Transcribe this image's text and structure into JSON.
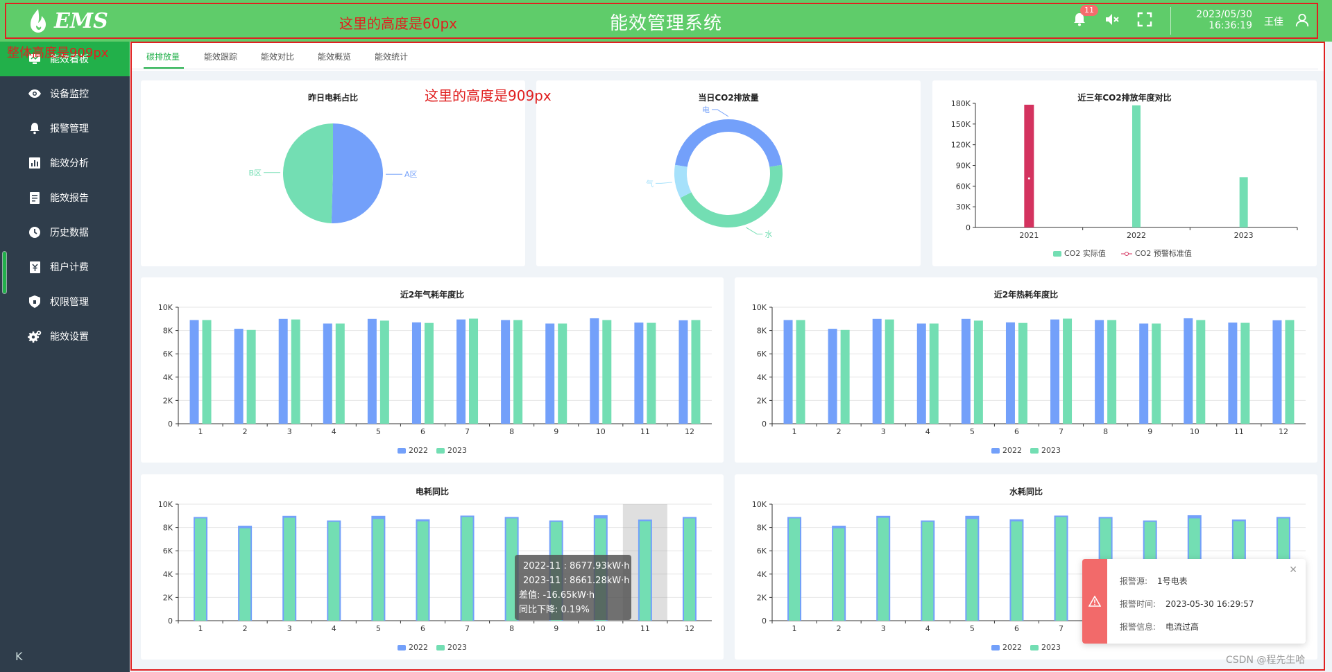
{
  "header": {
    "logo_text": "EMS",
    "title": "能效管理系统",
    "notification_count": "11",
    "date": "2023/05/30",
    "time": "16:36:19",
    "user": "王佳"
  },
  "annotations": {
    "header_height": "这里的高度是60px",
    "overall_height": "整体高度是909px",
    "content_height": "这里的高度是909px"
  },
  "sidebar": {
    "items": [
      {
        "label": "能效看板",
        "icon": "monitor-icon",
        "active": true
      },
      {
        "label": "设备监控",
        "icon": "eye-icon"
      },
      {
        "label": "报警管理",
        "icon": "bell-icon"
      },
      {
        "label": "能效分析",
        "icon": "bar-chart-icon"
      },
      {
        "label": "能效报告",
        "icon": "document-icon"
      },
      {
        "label": "历史数据",
        "icon": "clock-icon"
      },
      {
        "label": "租户计费",
        "icon": "bill-icon"
      },
      {
        "label": "权限管理",
        "icon": "shield-icon"
      },
      {
        "label": "能效设置",
        "icon": "gear-icon"
      }
    ],
    "collapse_icon": "K"
  },
  "tabs": [
    {
      "label": "碳排放量",
      "active": true
    },
    {
      "label": "能效跟踪"
    },
    {
      "label": "能效对比"
    },
    {
      "label": "能效概览"
    },
    {
      "label": "能效统计"
    }
  ],
  "colors": {
    "green": "#22b04a",
    "header": "#5fcc6a",
    "blue": "#73a0fa",
    "teal": "#73deb3",
    "red": "#d4335f",
    "sidebar": "#2f3d4b"
  },
  "chart_data": [
    {
      "id": "pie",
      "type": "pie",
      "title": "昨日电耗占比",
      "slices": [
        {
          "name": "A区",
          "value": 50.5
        },
        {
          "name": "B区",
          "value": 49.5
        }
      ]
    },
    {
      "id": "donut",
      "type": "pie",
      "title": "当日CO2排放量",
      "slices": [
        {
          "name": "电",
          "value": 45
        },
        {
          "name": "水",
          "value": 45
        },
        {
          "name": "气",
          "value": 10
        }
      ]
    },
    {
      "id": "co2",
      "type": "bar",
      "title": "近三年CO2排放年度对比",
      "categories": [
        "2021",
        "2022",
        "2023"
      ],
      "series": [
        {
          "name": "CO2  实际值",
          "values": [
            null,
            177000,
            73000
          ]
        },
        {
          "name": "CO2  预警标准值",
          "values": [
            178000,
            null,
            null
          ]
        }
      ],
      "yticks": [
        "0",
        "30K",
        "60K",
        "90K",
        "120K",
        "150K",
        "180K"
      ],
      "ylim": [
        0,
        180000
      ]
    },
    {
      "id": "gas",
      "type": "bar",
      "title": "近2年气耗年度比",
      "categories": [
        "1",
        "2",
        "3",
        "4",
        "5",
        "6",
        "7",
        "8",
        "9",
        "10",
        "11",
        "12"
      ],
      "series": [
        {
          "name": "2022",
          "values": [
            8900,
            8150,
            9000,
            8600,
            9000,
            8700,
            8950,
            8900,
            8600,
            9050,
            8680,
            8880
          ]
        },
        {
          "name": "2023",
          "values": [
            8900,
            8050,
            8950,
            8600,
            8850,
            8650,
            9020,
            8900,
            8600,
            8900,
            8660,
            8900
          ]
        }
      ],
      "yticks": [
        "0",
        "2K",
        "4K",
        "6K",
        "8K",
        "10K"
      ],
      "ylim": [
        0,
        10000
      ]
    },
    {
      "id": "heat",
      "type": "bar",
      "title": "近2年热耗年度比",
      "categories": [
        "1",
        "2",
        "3",
        "4",
        "5",
        "6",
        "7",
        "8",
        "9",
        "10",
        "11",
        "12"
      ],
      "series": [
        {
          "name": "2022",
          "values": [
            8900,
            8150,
            9000,
            8600,
            9000,
            8700,
            8950,
            8900,
            8600,
            9050,
            8680,
            8880
          ]
        },
        {
          "name": "2023",
          "values": [
            8900,
            8050,
            8950,
            8600,
            8850,
            8650,
            9020,
            8900,
            8600,
            8900,
            8660,
            8900
          ]
        }
      ],
      "yticks": [
        "0",
        "2K",
        "4K",
        "6K",
        "8K",
        "10K"
      ],
      "ylim": [
        0,
        10000
      ]
    },
    {
      "id": "elec",
      "type": "bar",
      "title": "电耗同比",
      "categories": [
        "1",
        "2",
        "3",
        "4",
        "5",
        "6",
        "7",
        "8",
        "9",
        "10",
        "11",
        "12"
      ],
      "series": [
        {
          "name": "2022",
          "values": [
            8900,
            8150,
            9000,
            8600,
            9000,
            8700,
            8950,
            8900,
            8600,
            9050,
            8677.93,
            8880
          ]
        },
        {
          "name": "2023",
          "values": [
            8900,
            8050,
            8950,
            8600,
            8850,
            8650,
            9020,
            8900,
            8600,
            8900,
            8661.28,
            8900
          ]
        }
      ],
      "highlight": "11",
      "yticks": [
        "0",
        "2K",
        "4K",
        "6K",
        "8K",
        "10K"
      ],
      "ylim": [
        0,
        10000
      ]
    },
    {
      "id": "water",
      "type": "bar",
      "title": "水耗同比",
      "categories": [
        "1",
        "2",
        "3",
        "4",
        "5",
        "6",
        "7",
        "8",
        "9",
        "10",
        "11",
        "12"
      ],
      "series": [
        {
          "name": "2022",
          "values": [
            8900,
            8150,
            9000,
            8600,
            9000,
            8700,
            8950,
            8900,
            8600,
            9050,
            8680,
            8880
          ]
        },
        {
          "name": "2023",
          "values": [
            8900,
            8050,
            8950,
            8600,
            8850,
            8650,
            9020,
            8900,
            8600,
            8900,
            8660,
            8900
          ]
        }
      ],
      "yticks": [
        "0",
        "2K",
        "4K",
        "6K",
        "8K",
        "10K"
      ],
      "ylim": [
        0,
        10000
      ]
    }
  ],
  "tooltip": {
    "line1": "2022-11 : 8677.93kW·h",
    "line2": "2023-11 : 8661.28kW·h",
    "line3": "差值: -16.65kW·h",
    "line4": "同比下降: 0.19%"
  },
  "alarm": {
    "source_label": "报警源:",
    "source": "1号电表",
    "time_label": "报警时间:",
    "time": "2023-05-30 16:29:57",
    "info_label": "报警信息:",
    "info": "电流过高"
  },
  "watermark": "CSDN @程先生哈"
}
